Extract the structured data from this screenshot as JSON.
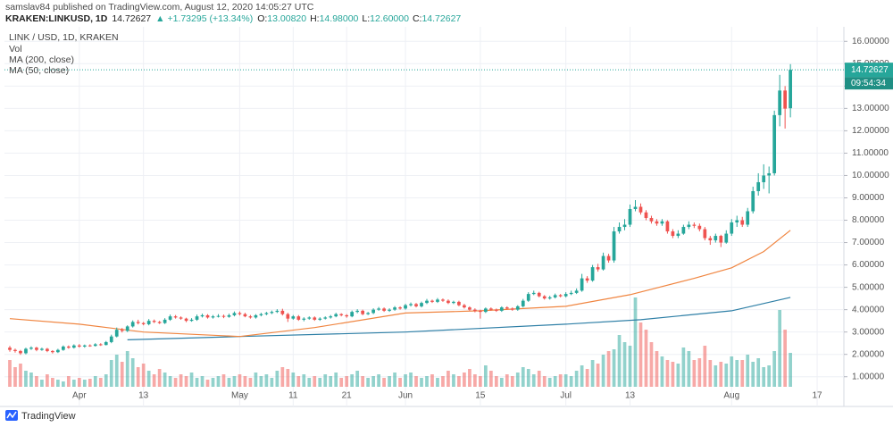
{
  "header": {
    "published": "samslav84 published on TradingView.com, August 12, 2020 14:05:27 UTC",
    "symbol": "KRAKEN:LINKUSD, 1D",
    "last": "14.72627",
    "change": "▲ +1.73295 (+13.34%)",
    "ohlc": [
      {
        "label": "O:",
        "value": "13.00820"
      },
      {
        "label": "H:",
        "value": "14.98000"
      },
      {
        "label": "L:",
        "value": "12.60000"
      },
      {
        "label": "C:",
        "value": "14.72627"
      }
    ]
  },
  "chart_data": {
    "type": "candlestick",
    "title": "LINK / USD, 1D, KRAKEN",
    "up_color": "#26a69a",
    "down_color": "#ef5350",
    "x": [
      "03-19",
      "03-20",
      "03-21",
      "03-22",
      "03-23",
      "03-24",
      "03-25",
      "03-26",
      "03-27",
      "03-28",
      "03-29",
      "03-30",
      "03-31",
      "04-01",
      "04-02",
      "04-03",
      "04-04",
      "04-05",
      "04-06",
      "04-07",
      "04-08",
      "04-09",
      "04-10",
      "04-11",
      "04-12",
      "04-13",
      "04-14",
      "04-15",
      "04-16",
      "04-17",
      "04-18",
      "04-19",
      "04-20",
      "04-21",
      "04-22",
      "04-23",
      "04-24",
      "04-25",
      "04-26",
      "04-27",
      "04-28",
      "04-29",
      "04-30",
      "05-01",
      "05-02",
      "05-03",
      "05-04",
      "05-05",
      "05-06",
      "05-07",
      "05-08",
      "05-09",
      "05-10",
      "05-11",
      "05-12",
      "05-13",
      "05-14",
      "05-15",
      "05-16",
      "05-17",
      "05-18",
      "05-19",
      "05-20",
      "05-21",
      "05-22",
      "05-23",
      "05-24",
      "05-25",
      "05-26",
      "05-27",
      "05-28",
      "05-29",
      "05-30",
      "05-31",
      "06-01",
      "06-02",
      "06-03",
      "06-04",
      "06-05",
      "06-06",
      "06-07",
      "06-08",
      "06-09",
      "06-10",
      "06-11",
      "06-12",
      "06-13",
      "06-14",
      "06-15",
      "06-16",
      "06-17",
      "06-18",
      "06-19",
      "06-20",
      "06-21",
      "06-22",
      "06-23",
      "06-24",
      "06-25",
      "06-26",
      "06-27",
      "06-28",
      "06-29",
      "06-30",
      "07-01",
      "07-02",
      "07-03",
      "07-04",
      "07-05",
      "07-06",
      "07-07",
      "07-08",
      "07-09",
      "07-10",
      "07-11",
      "07-12",
      "07-13",
      "07-14",
      "07-15",
      "07-16",
      "07-17",
      "07-18",
      "07-19",
      "07-20",
      "07-21",
      "07-22",
      "07-23",
      "07-24",
      "07-25",
      "07-26",
      "07-27",
      "07-28",
      "07-29",
      "07-30",
      "07-31",
      "08-01",
      "08-02",
      "08-03",
      "08-04",
      "08-05",
      "08-06",
      "08-07",
      "08-08",
      "08-09",
      "08-10",
      "08-11",
      "08-12"
    ],
    "open": [
      2.3,
      2.2,
      2.15,
      2.05,
      2.25,
      2.3,
      2.2,
      2.25,
      2.15,
      2.1,
      2.2,
      2.35,
      2.3,
      2.4,
      2.35,
      2.4,
      2.38,
      2.45,
      2.42,
      2.55,
      2.8,
      3.1,
      3.05,
      3.25,
      3.45,
      3.4,
      3.35,
      3.5,
      3.45,
      3.4,
      3.55,
      3.7,
      3.65,
      3.6,
      3.5,
      3.55,
      3.7,
      3.75,
      3.65,
      3.7,
      3.72,
      3.68,
      3.75,
      3.85,
      3.8,
      3.7,
      3.65,
      3.75,
      3.8,
      3.85,
      3.9,
      3.95,
      3.8,
      3.6,
      3.7,
      3.55,
      3.6,
      3.65,
      3.55,
      3.6,
      3.65,
      3.7,
      3.8,
      3.75,
      3.7,
      3.9,
      3.95,
      3.8,
      3.85,
      4.0,
      4.05,
      3.95,
      4.0,
      4.1,
      4.05,
      4.2,
      4.25,
      4.15,
      4.3,
      4.4,
      4.35,
      4.45,
      4.4,
      4.3,
      4.35,
      4.2,
      4.1,
      4.0,
      3.95,
      3.9,
      4.05,
      4.0,
      3.95,
      4.1,
      4.05,
      4.0,
      4.15,
      4.4,
      4.7,
      4.75,
      4.6,
      4.5,
      4.55,
      4.65,
      4.6,
      4.7,
      4.75,
      4.85,
      5.4,
      5.3,
      5.9,
      5.8,
      6.4,
      6.2,
      7.5,
      7.7,
      7.8,
      8.5,
      8.6,
      8.35,
      8.1,
      7.95,
      7.85,
      7.95,
      7.5,
      7.3,
      7.4,
      7.7,
      7.8,
      7.75,
      7.6,
      7.2,
      7.1,
      7.3,
      7.0,
      7.4,
      7.9,
      8.0,
      7.8,
      8.4,
      9.3,
      9.7,
      10.0,
      10.1,
      12.7,
      13.8,
      13.0082
    ],
    "high": [
      2.38,
      2.26,
      2.2,
      2.3,
      2.36,
      2.34,
      2.3,
      2.29,
      2.19,
      2.25,
      2.4,
      2.4,
      2.45,
      2.46,
      2.44,
      2.45,
      2.5,
      2.5,
      2.6,
      2.88,
      3.2,
      3.18,
      3.3,
      3.52,
      3.55,
      3.45,
      3.58,
      3.56,
      3.5,
      3.62,
      3.78,
      3.76,
      3.7,
      3.64,
      3.62,
      3.78,
      3.82,
      3.8,
      3.76,
      3.8,
      3.78,
      3.82,
      3.92,
      3.92,
      3.86,
      3.76,
      3.8,
      3.86,
      3.9,
      3.96,
      4.02,
      4.04,
      3.86,
      3.76,
      3.76,
      3.66,
      3.7,
      3.7,
      3.66,
      3.7,
      3.76,
      3.86,
      3.84,
      3.8,
      3.96,
      4.02,
      4.0,
      3.9,
      4.06,
      4.12,
      4.1,
      4.06,
      4.16,
      4.15,
      4.26,
      4.32,
      4.3,
      4.36,
      4.48,
      4.45,
      4.52,
      4.5,
      4.46,
      4.4,
      4.4,
      4.26,
      4.15,
      4.06,
      4.0,
      4.1,
      4.1,
      4.05,
      4.15,
      4.15,
      4.1,
      4.2,
      4.48,
      4.78,
      4.85,
      4.8,
      4.65,
      4.62,
      4.72,
      4.7,
      4.78,
      4.85,
      4.95,
      5.6,
      5.5,
      6.0,
      6.05,
      6.55,
      6.5,
      7.7,
      7.9,
      8.05,
      8.7,
      8.9,
      8.75,
      8.45,
      8.2,
      8.05,
      8.05,
      8.0,
      7.6,
      7.55,
      7.8,
      7.95,
      7.9,
      7.85,
      7.7,
      7.3,
      7.4,
      7.35,
      7.55,
      8.05,
      8.2,
      8.15,
      8.55,
      9.5,
      10.1,
      10.5,
      10.4,
      12.9,
      14.5,
      14.0,
      14.98
    ],
    "low": [
      2.12,
      2.08,
      1.98,
      2.0,
      2.2,
      2.14,
      2.16,
      2.1,
      2.04,
      2.06,
      2.16,
      2.25,
      2.26,
      2.3,
      2.3,
      2.34,
      2.35,
      2.38,
      2.4,
      2.5,
      2.76,
      2.98,
      3.0,
      3.2,
      3.34,
      3.3,
      3.3,
      3.4,
      3.36,
      3.36,
      3.5,
      3.6,
      3.55,
      3.44,
      3.46,
      3.5,
      3.65,
      3.6,
      3.6,
      3.65,
      3.62,
      3.64,
      3.7,
      3.74,
      3.66,
      3.6,
      3.6,
      3.7,
      3.75,
      3.8,
      3.85,
      3.74,
      3.45,
      3.55,
      3.5,
      3.48,
      3.55,
      3.5,
      3.5,
      3.56,
      3.6,
      3.66,
      3.7,
      3.64,
      3.66,
      3.84,
      3.75,
      3.76,
      3.8,
      3.95,
      3.9,
      3.9,
      3.95,
      4.0,
      4.0,
      4.14,
      4.1,
      4.1,
      4.25,
      4.3,
      4.3,
      4.35,
      4.25,
      4.25,
      4.15,
      4.05,
      3.95,
      3.88,
      3.6,
      3.85,
      3.95,
      3.9,
      3.9,
      4.0,
      3.95,
      3.95,
      4.1,
      4.35,
      4.65,
      4.55,
      4.45,
      4.45,
      4.5,
      4.55,
      4.55,
      4.65,
      4.7,
      4.8,
      5.2,
      5.25,
      5.7,
      5.75,
      6.1,
      6.1,
      7.4,
      7.55,
      7.7,
      8.4,
      8.25,
      8.0,
      7.85,
      7.75,
      7.75,
      7.4,
      7.2,
      7.2,
      7.35,
      7.6,
      7.65,
      7.5,
      7.1,
      6.9,
      7.0,
      6.8,
      6.95,
      7.3,
      7.7,
      7.7,
      7.7,
      8.3,
      9.1,
      9.4,
      9.2,
      10.0,
      12.2,
      12.1,
      12.6
    ],
    "close": [
      2.2,
      2.15,
      2.05,
      2.25,
      2.3,
      2.2,
      2.25,
      2.15,
      2.1,
      2.2,
      2.35,
      2.3,
      2.4,
      2.35,
      2.4,
      2.38,
      2.45,
      2.42,
      2.55,
      2.8,
      3.1,
      3.05,
      3.25,
      3.45,
      3.4,
      3.35,
      3.5,
      3.45,
      3.4,
      3.55,
      3.7,
      3.65,
      3.6,
      3.5,
      3.55,
      3.7,
      3.75,
      3.65,
      3.7,
      3.72,
      3.68,
      3.75,
      3.85,
      3.8,
      3.7,
      3.65,
      3.75,
      3.8,
      3.85,
      3.9,
      3.95,
      3.8,
      3.6,
      3.7,
      3.55,
      3.6,
      3.65,
      3.55,
      3.6,
      3.65,
      3.7,
      3.8,
      3.75,
      3.7,
      3.9,
      3.95,
      3.8,
      3.85,
      4.0,
      4.05,
      3.95,
      4.0,
      4.1,
      4.05,
      4.2,
      4.25,
      4.15,
      4.3,
      4.4,
      4.35,
      4.45,
      4.4,
      4.3,
      4.35,
      4.2,
      4.1,
      4.0,
      3.95,
      3.9,
      4.05,
      4.0,
      3.95,
      4.1,
      4.05,
      4.0,
      4.15,
      4.4,
      4.7,
      4.75,
      4.6,
      4.5,
      4.55,
      4.65,
      4.6,
      4.7,
      4.75,
      4.85,
      5.4,
      5.3,
      5.9,
      5.8,
      6.4,
      6.2,
      7.5,
      7.7,
      7.8,
      8.5,
      8.6,
      8.35,
      8.1,
      7.95,
      7.85,
      7.95,
      7.5,
      7.3,
      7.4,
      7.7,
      7.8,
      7.75,
      7.6,
      7.2,
      7.1,
      7.3,
      7.0,
      7.4,
      7.9,
      8.0,
      7.8,
      8.4,
      9.3,
      9.7,
      10.0,
      10.1,
      12.7,
      13.8,
      12.99,
      14.72627
    ],
    "volume": {
      "name": "Vol",
      "values": [
        30,
        22,
        26,
        18,
        16,
        12,
        8,
        14,
        10,
        8,
        6,
        12,
        8,
        10,
        8,
        9,
        12,
        10,
        14,
        30,
        36,
        28,
        40,
        32,
        22,
        26,
        18,
        14,
        20,
        16,
        12,
        10,
        14,
        12,
        16,
        10,
        12,
        8,
        10,
        12,
        14,
        10,
        12,
        14,
        12,
        10,
        16,
        12,
        14,
        10,
        18,
        22,
        20,
        16,
        12,
        14,
        10,
        12,
        10,
        14,
        12,
        16,
        10,
        12,
        14,
        18,
        12,
        10,
        12,
        14,
        10,
        12,
        16,
        10,
        14,
        16,
        12,
        10,
        12,
        14,
        10,
        12,
        18,
        14,
        12,
        16,
        20,
        14,
        12,
        24,
        18,
        12,
        10,
        14,
        12,
        16,
        22,
        20,
        14,
        18,
        12,
        10,
        12,
        14,
        14,
        12,
        18,
        24,
        20,
        30,
        26,
        36,
        40,
        42,
        58,
        50,
        46,
        100,
        72,
        64,
        50,
        40,
        34,
        30,
        28,
        26,
        44,
        40,
        30,
        32,
        46,
        30,
        24,
        28,
        26,
        34,
        30,
        30,
        36,
        28,
        32,
        22,
        24,
        40,
        86,
        64,
        38
      ]
    },
    "vlim": [
      0,
      403
    ],
    "series": [
      {
        "name": "MA (200, close)",
        "color": "#2e7fa6",
        "x": [
          "04-10",
          "05-01",
          "06-01",
          "07-01",
          "07-15",
          "08-01",
          "08-12"
        ],
        "values": [
          2.65,
          2.8,
          3.0,
          3.35,
          3.55,
          3.95,
          4.55
        ]
      },
      {
        "name": "MA (50, close)",
        "color": "#f08540",
        "x": [
          "03-19",
          "04-01",
          "04-13",
          "05-01",
          "05-15",
          "06-01",
          "06-15",
          "07-01",
          "07-13",
          "07-25",
          "08-01",
          "08-07",
          "08-12"
        ],
        "values": [
          3.6,
          3.35,
          3.0,
          2.8,
          3.2,
          3.85,
          3.95,
          4.15,
          4.67,
          5.4,
          5.87,
          6.6,
          7.55
        ]
      }
    ],
    "xlim": [
      "03-18",
      "08-22"
    ],
    "xticks": [
      {
        "value": "04-01",
        "label": "Apr"
      },
      {
        "value": "04-13",
        "label": "13"
      },
      {
        "value": "05-01",
        "label": "May"
      },
      {
        "value": "05-11",
        "label": "11"
      },
      {
        "value": "05-21",
        "label": "21"
      },
      {
        "value": "06-01",
        "label": "Jun"
      },
      {
        "value": "06-15",
        "label": "15"
      },
      {
        "value": "07-01",
        "label": "Jul"
      },
      {
        "value": "07-13",
        "label": "13"
      },
      {
        "value": "08-01",
        "label": "Aug"
      },
      {
        "value": "08-17",
        "label": "17"
      }
    ],
    "ylim": [
      0.55,
      16.65
    ],
    "yticks": [
      {
        "value": 1,
        "label": "1.00000"
      },
      {
        "value": 2,
        "label": "2.00000"
      },
      {
        "value": 3,
        "label": "3.00000"
      },
      {
        "value": 4,
        "label": "4.00000"
      },
      {
        "value": 5,
        "label": "5.00000"
      },
      {
        "value": 6,
        "label": "6.00000"
      },
      {
        "value": 7,
        "label": "7.00000"
      },
      {
        "value": 8,
        "label": "8.00000"
      },
      {
        "value": 9,
        "label": "9.00000"
      },
      {
        "value": 10,
        "label": "10.00000"
      },
      {
        "value": 11,
        "label": "11.00000"
      },
      {
        "value": 12,
        "label": "12.00000"
      },
      {
        "value": 13,
        "label": "13.00000"
      },
      {
        "value": 14,
        "label": "14.00000"
      },
      {
        "value": 15,
        "label": "15.00000"
      },
      {
        "value": 16,
        "label": "16.00000"
      }
    ],
    "grid": true,
    "last_price_label": "14.72627",
    "countdown": "09:54:34"
  },
  "footer": {
    "brand": "TradingView"
  }
}
